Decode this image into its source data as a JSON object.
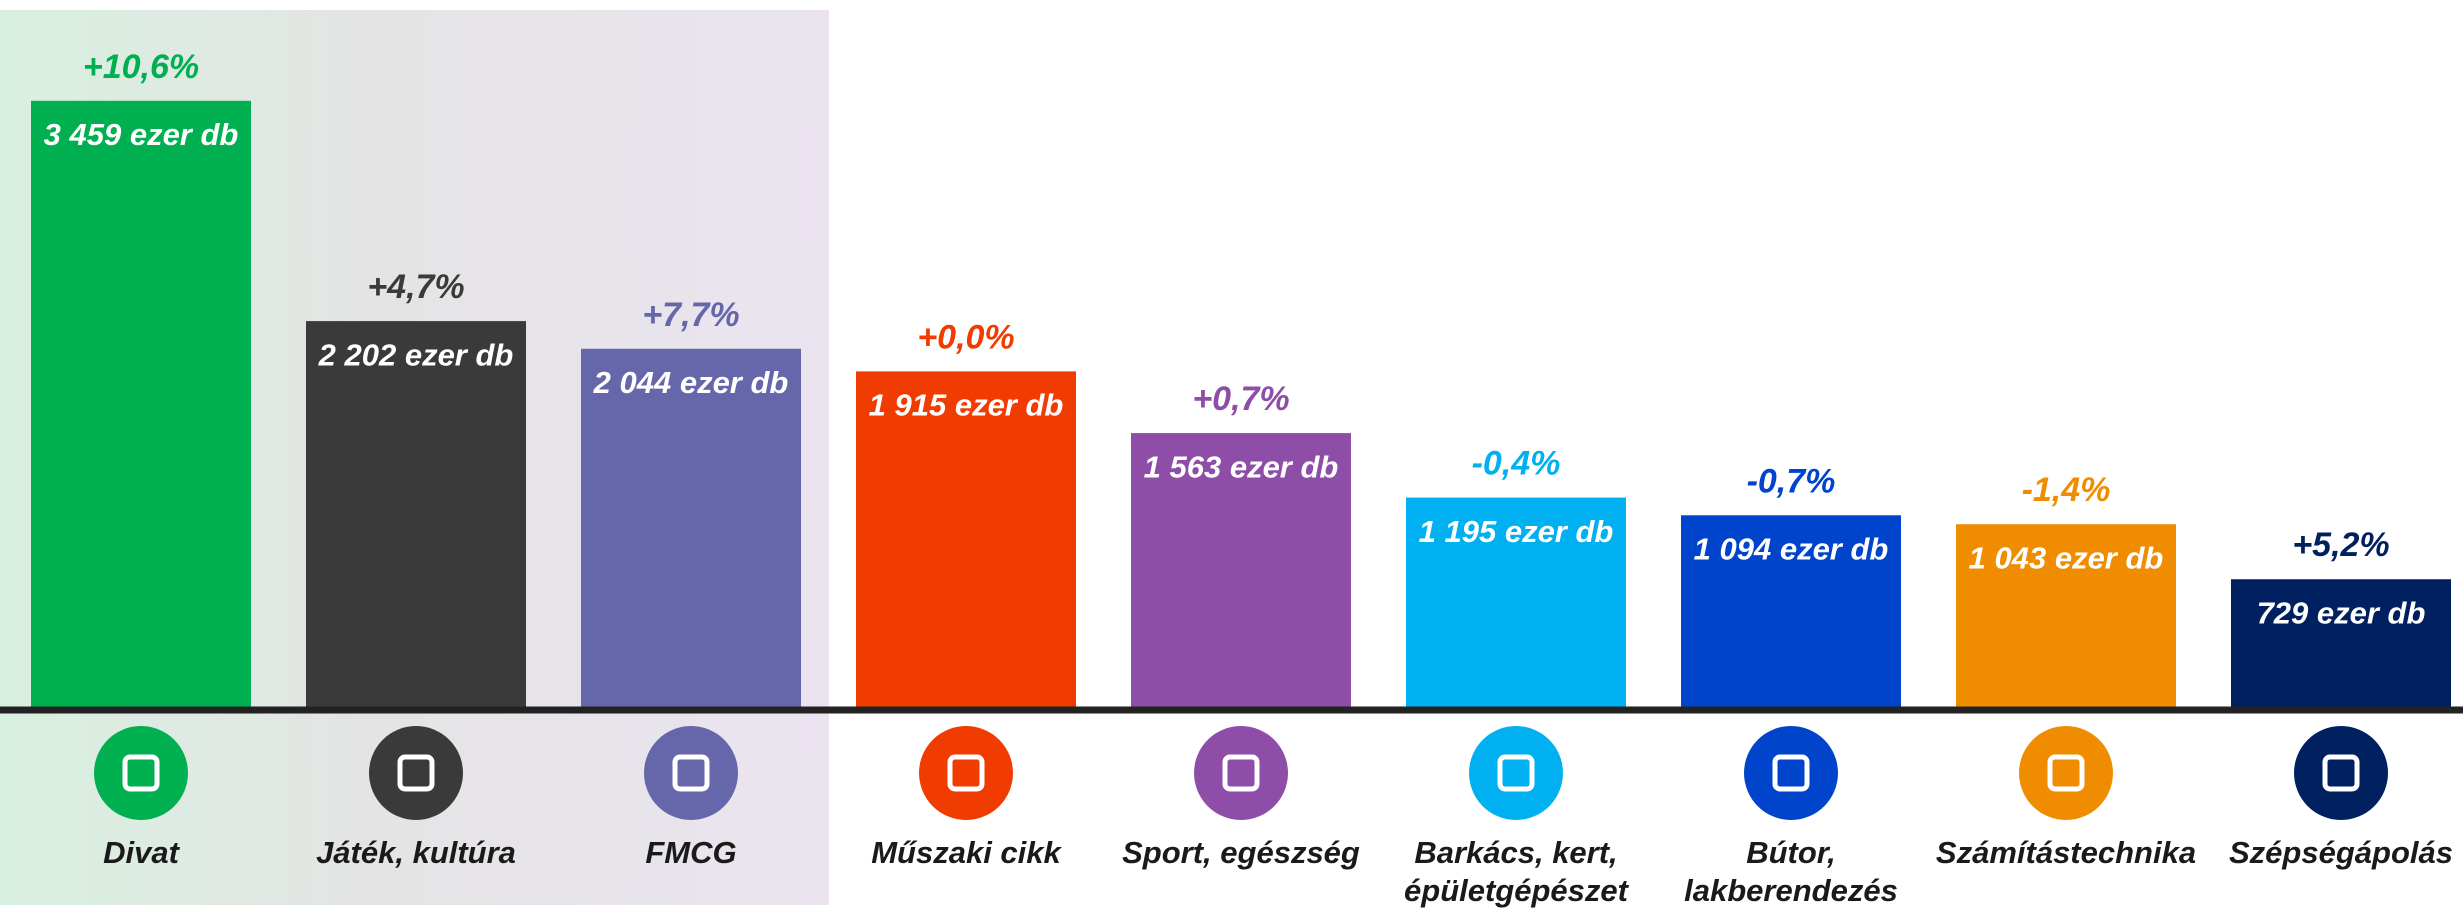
{
  "chart_data": {
    "type": "bar",
    "categories": [
      "Divat",
      "Játék, kultúra",
      "FMCG",
      "Műszaki cikk",
      "Sport, egészség",
      "Barkács, kert, épületgépészet",
      "Bútor, lakberendezés",
      "Számítástechnika",
      "Szépségápolás"
    ],
    "values": [
      3459,
      2202,
      2044,
      1915,
      1563,
      1195,
      1094,
      1043,
      729
    ],
    "value_labels": [
      "3 459 ezer db",
      "2 202 ezer db",
      "2 044 ezer db",
      "1 915 ezer db",
      "1 563 ezer db",
      "1 195 ezer db",
      "1 094 ezer db",
      "1 043 ezer db",
      "729 ezer db"
    ],
    "changes": [
      "+10,6%",
      "+4,7%",
      "+7,7%",
      "+0,0%",
      "+0,7%",
      "-0,4%",
      "-0,7%",
      "-1,4%",
      "+5,2%"
    ],
    "colors": [
      "#00b050",
      "#3a3a3a",
      "#6667ab",
      "#f03c00",
      "#8e4ea8",
      "#00b0f0",
      "#0044cc",
      "#f08c00",
      "#002060"
    ],
    "ylim": [
      0,
      4000
    ]
  }
}
